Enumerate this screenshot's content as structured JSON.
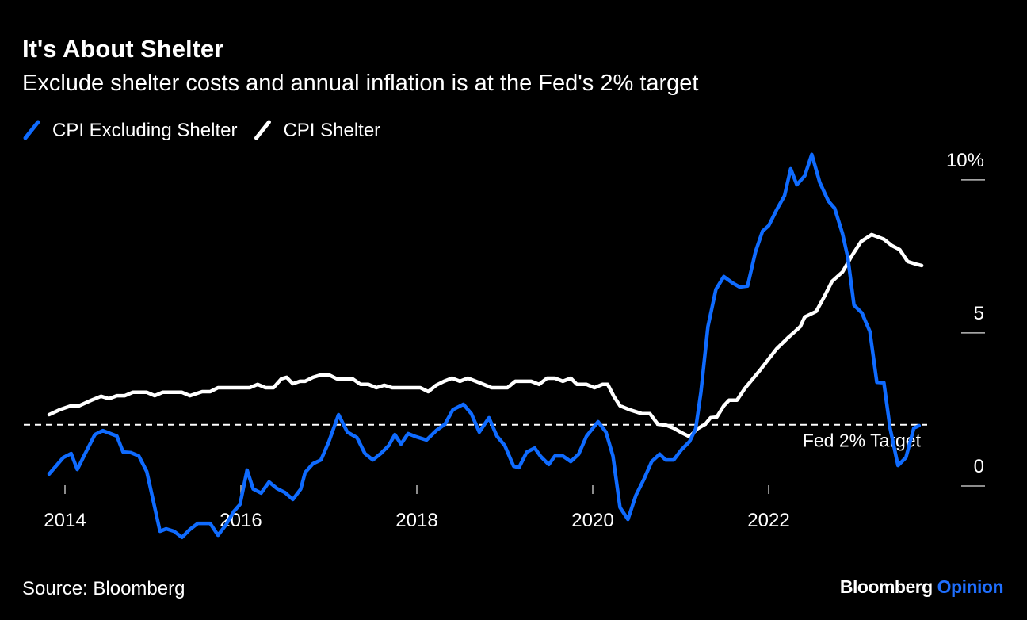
{
  "chart_data": {
    "type": "line",
    "title": "It's About Shelter",
    "subtitle": "Exclude shelter costs and annual inflation is at the Fed's 2% target",
    "source": "Source: Bloomberg",
    "brand": [
      "Bloomberg",
      "Opinion"
    ],
    "xlim": [
      2013.5,
      2024.0
    ],
    "xticks": [
      2014,
      2016,
      2018,
      2020,
      2022
    ],
    "ylim": [
      -2,
      11
    ],
    "yticks": [
      0,
      5,
      {
        "value": 10,
        "label": "10%"
      }
    ],
    "reference": {
      "value": 2,
      "label": "Fed 2% Target",
      "color": "#ffffff"
    },
    "series": [
      {
        "name": "CPI Excluding Shelter",
        "color": "#0f6bff",
        "x": [
          2013.82,
          2013.98,
          2014.07,
          2014.14,
          2014.23,
          2014.34,
          2014.43,
          2014.59,
          2014.66,
          2014.75,
          2014.84,
          2014.93,
          2014.99,
          2015.08,
          2015.15,
          2015.24,
          2015.33,
          2015.42,
          2015.51,
          2015.65,
          2015.74,
          2015.83,
          2015.92,
          2015.99,
          2016.07,
          2016.14,
          2016.23,
          2016.32,
          2016.41,
          2016.5,
          2016.59,
          2016.68,
          2016.73,
          2016.82,
          2016.91,
          2017.0,
          2017.11,
          2017.21,
          2017.32,
          2017.41,
          2017.5,
          2017.59,
          2017.68,
          2017.75,
          2017.82,
          2017.9,
          2017.99,
          2018.11,
          2018.22,
          2018.32,
          2018.41,
          2018.53,
          2018.62,
          2018.71,
          2018.82,
          2018.91,
          2019.0,
          2019.1,
          2019.16,
          2019.25,
          2019.34,
          2019.41,
          2019.5,
          2019.57,
          2019.66,
          2019.75,
          2019.84,
          2019.93,
          2020.06,
          2020.15,
          2020.23,
          2020.31,
          2020.4,
          2020.49,
          2020.58,
          2020.67,
          2020.76,
          2020.83,
          2020.92,
          2021.01,
          2021.1,
          2021.17,
          2021.23,
          2021.31,
          2021.4,
          2021.49,
          2021.59,
          2021.67,
          2021.76,
          2021.85,
          2021.93,
          2022.0,
          2022.09,
          2022.18,
          2022.25,
          2022.32,
          2022.41,
          2022.49,
          2022.58,
          2022.68,
          2022.75,
          2022.84,
          2022.9,
          2022.97,
          2023.06,
          2023.15,
          2023.23,
          2023.31,
          2023.38,
          2023.47,
          2023.56,
          2023.65,
          2023.71
        ],
        "values": [
          0.39,
          0.93,
          1.06,
          0.54,
          1.06,
          1.68,
          1.81,
          1.63,
          1.11,
          1.09,
          0.98,
          0.47,
          -0.31,
          -1.48,
          -1.4,
          -1.48,
          -1.68,
          -1.42,
          -1.22,
          -1.22,
          -1.61,
          -1.27,
          -0.83,
          -0.6,
          0.52,
          -0.1,
          -0.23,
          0.13,
          -0.08,
          -0.21,
          -0.44,
          -0.1,
          0.44,
          0.73,
          0.85,
          1.45,
          2.33,
          1.76,
          1.58,
          1.06,
          0.85,
          1.06,
          1.32,
          1.68,
          1.37,
          1.71,
          1.61,
          1.5,
          1.81,
          2.02,
          2.49,
          2.67,
          2.36,
          1.76,
          2.23,
          1.63,
          1.32,
          0.65,
          0.6,
          1.11,
          1.24,
          0.96,
          0.7,
          0.98,
          0.98,
          0.8,
          1.04,
          1.63,
          2.1,
          1.76,
          0.98,
          -0.7,
          -1.09,
          -0.31,
          0.21,
          0.8,
          1.04,
          0.85,
          0.85,
          1.19,
          1.45,
          1.87,
          3.06,
          5.21,
          6.42,
          6.84,
          6.63,
          6.5,
          6.53,
          7.64,
          8.32,
          8.5,
          9.02,
          9.48,
          10.36,
          9.84,
          10.13,
          10.83,
          9.92,
          9.3,
          9.07,
          8.24,
          7.46,
          5.91,
          5.65,
          5.05,
          3.39,
          3.37,
          1.89,
          0.67,
          0.93,
          1.89,
          1.97
        ]
      },
      {
        "name": "CPI Shelter",
        "color": "#ffffff",
        "x": [
          2013.82,
          2013.94,
          2014.07,
          2014.16,
          2014.3,
          2014.41,
          2014.5,
          2014.59,
          2014.68,
          2014.77,
          2014.93,
          2015.02,
          2015.11,
          2015.33,
          2015.42,
          2015.56,
          2015.65,
          2015.74,
          2015.92,
          2016.1,
          2016.19,
          2016.28,
          2016.37,
          2016.46,
          2016.52,
          2016.59,
          2016.67,
          2016.73,
          2016.82,
          2016.91,
          2017.0,
          2017.09,
          2017.27,
          2017.36,
          2017.45,
          2017.54,
          2017.63,
          2017.72,
          2018.04,
          2018.13,
          2018.22,
          2018.31,
          2018.4,
          2018.49,
          2018.58,
          2018.67,
          2018.76,
          2018.85,
          2019.03,
          2019.12,
          2019.3,
          2019.39,
          2019.48,
          2019.57,
          2019.66,
          2019.75,
          2019.82,
          2019.93,
          2020.02,
          2020.11,
          2020.17,
          2020.24,
          2020.31,
          2020.42,
          2020.56,
          2020.65,
          2020.74,
          2020.83,
          2020.92,
          2021.01,
          2021.1,
          2021.19,
          2021.28,
          2021.34,
          2021.41,
          2021.49,
          2021.55,
          2021.64,
          2021.73,
          2021.91,
          2022.09,
          2022.23,
          2022.3,
          2022.36,
          2022.41,
          2022.54,
          2022.63,
          2022.72,
          2022.84,
          2022.95,
          2023.05,
          2023.17,
          2023.31,
          2023.4,
          2023.49,
          2023.58,
          2023.67,
          2023.74
        ],
        "values": [
          2.33,
          2.49,
          2.62,
          2.62,
          2.8,
          2.93,
          2.85,
          2.95,
          2.95,
          3.06,
          3.06,
          2.95,
          3.06,
          3.06,
          2.95,
          3.08,
          3.08,
          3.21,
          3.21,
          3.21,
          3.32,
          3.21,
          3.21,
          3.5,
          3.55,
          3.34,
          3.42,
          3.42,
          3.55,
          3.63,
          3.63,
          3.5,
          3.5,
          3.32,
          3.32,
          3.21,
          3.29,
          3.21,
          3.21,
          3.08,
          3.29,
          3.42,
          3.52,
          3.42,
          3.52,
          3.42,
          3.32,
          3.21,
          3.21,
          3.42,
          3.42,
          3.32,
          3.52,
          3.52,
          3.42,
          3.52,
          3.32,
          3.32,
          3.21,
          3.32,
          3.32,
          2.93,
          2.62,
          2.49,
          2.36,
          2.36,
          2.02,
          1.99,
          1.89,
          1.74,
          1.61,
          1.87,
          2.02,
          2.23,
          2.25,
          2.62,
          2.8,
          2.8,
          3.19,
          3.81,
          4.48,
          4.87,
          5.05,
          5.21,
          5.52,
          5.7,
          6.17,
          6.68,
          6.99,
          7.54,
          7.98,
          8.21,
          8.06,
          7.85,
          7.72,
          7.33,
          7.25,
          7.2
        ]
      }
    ]
  }
}
